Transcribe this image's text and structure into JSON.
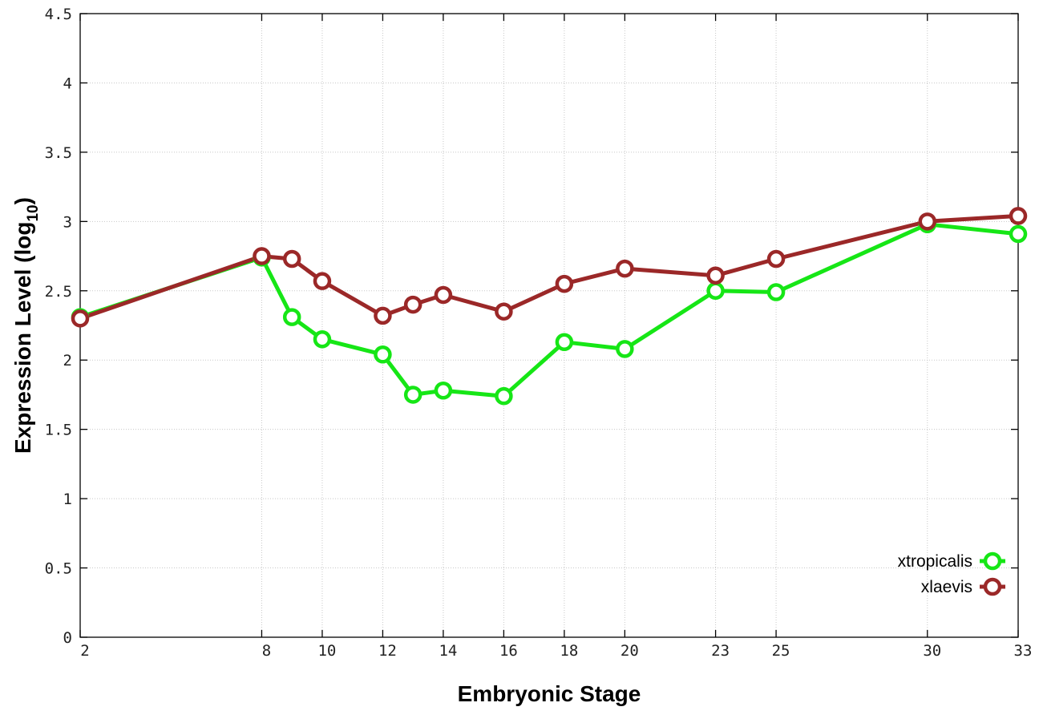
{
  "chart_data": {
    "type": "line",
    "xlabel": "Embryonic Stage",
    "ylabel_main": "Expression Level (log",
    "ylabel_sub": "10",
    "ylabel_close": ")",
    "xlim": [
      2,
      33
    ],
    "ylim": [
      0,
      4.5
    ],
    "x_ticks": [
      2,
      8,
      10,
      12,
      14,
      16,
      18,
      20,
      23,
      25,
      30,
      33
    ],
    "y_ticks": [
      0,
      0.5,
      1,
      1.5,
      2,
      2.5,
      3,
      3.5,
      4,
      4.5
    ],
    "y_tick_labels": [
      "0",
      "0.5",
      "1",
      "1.5",
      "2",
      "2.5",
      "3",
      "3.5",
      "4",
      "4.5"
    ],
    "grid": true,
    "legend_position": "bottom-right",
    "series": [
      {
        "name": "xtropicalis",
        "color": "#16e616",
        "x": [
          2,
          8,
          9,
          10,
          12,
          13,
          14,
          16,
          18,
          20,
          23,
          25,
          30,
          33
        ],
        "y": [
          2.31,
          2.74,
          2.31,
          2.15,
          2.04,
          1.75,
          1.78,
          1.74,
          2.13,
          2.08,
          2.5,
          2.49,
          2.98,
          2.91
        ]
      },
      {
        "name": "xlaevis",
        "color": "#9b2828",
        "x": [
          2,
          8,
          9,
          10,
          12,
          13,
          14,
          16,
          18,
          20,
          23,
          25,
          30,
          33
        ],
        "y": [
          2.3,
          2.75,
          2.73,
          2.57,
          2.32,
          2.4,
          2.47,
          2.35,
          2.55,
          2.66,
          2.61,
          2.73,
          3.0,
          3.04
        ]
      }
    ]
  }
}
